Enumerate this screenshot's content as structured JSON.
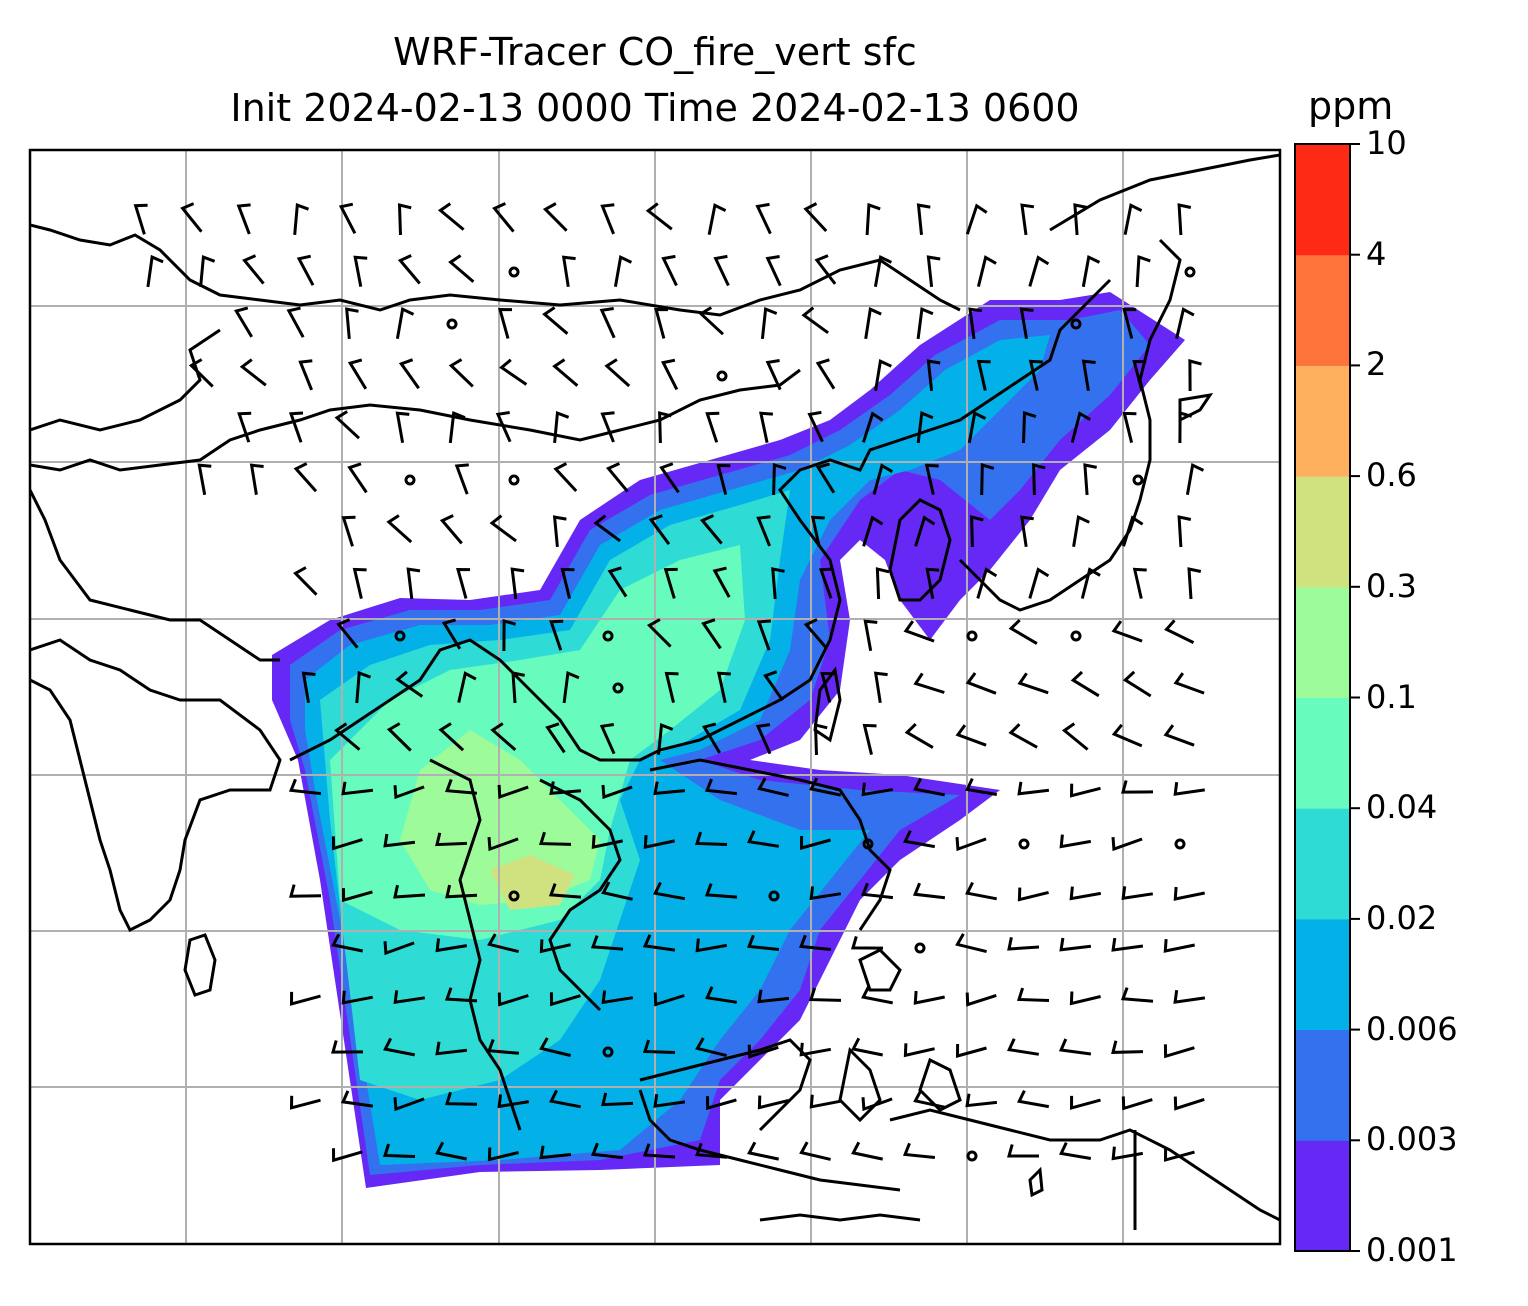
{
  "title": {
    "line1": "WRF-Tracer CO_fire_vert sfc",
    "line2": "Init 2024-02-13 0000 Time 2024-02-13 0600"
  },
  "colorbar": {
    "unit": "ppm",
    "levels": [
      "0.001",
      "0.003",
      "0.006",
      "0.02",
      "0.04",
      "0.1",
      "0.3",
      "0.6",
      "2",
      "4",
      "10"
    ],
    "colors": [
      "#6629f5",
      "#3371ee",
      "#03b1e8",
      "#2fdbd5",
      "#67fcbd",
      "#9efb9a",
      "#d0e180",
      "#feb05f",
      "#fe7339",
      "#fe2a16"
    ]
  },
  "map": {
    "field": "CO_fire_vert",
    "level": "sfc",
    "gridlines": true,
    "coastlines": true,
    "wind_barbs": true
  }
}
